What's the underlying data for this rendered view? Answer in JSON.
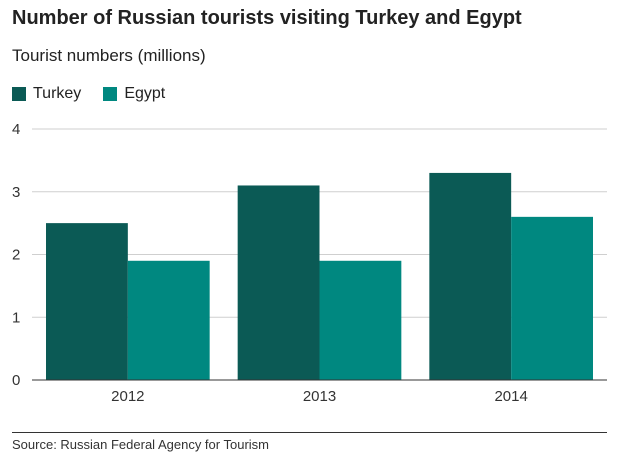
{
  "header": {
    "title": "Number of Russian tourists visiting Turkey and Egypt",
    "subtitle": "Tourist numbers (millions)"
  },
  "footer": {
    "source": "Source: Russian Federal Agency for Tourism"
  },
  "chart_data": {
    "type": "bar",
    "title": "Number of Russian tourists visiting Turkey and Egypt",
    "subtitle": "Tourist numbers (millions)",
    "categories": [
      "2012",
      "2013",
      "2014"
    ],
    "series": [
      {
        "name": "Turkey",
        "values": [
          2.5,
          3.1,
          3.3
        ],
        "color": "#0b5a55"
      },
      {
        "name": "Egypt",
        "values": [
          1.9,
          1.9,
          2.6
        ],
        "color": "#008880"
      }
    ],
    "ylim": [
      0,
      4
    ],
    "yticks": [
      "0",
      "1",
      "2",
      "3",
      "4"
    ],
    "xlabel": "",
    "ylabel": "",
    "grid": true,
    "legend_position": "top-left"
  }
}
